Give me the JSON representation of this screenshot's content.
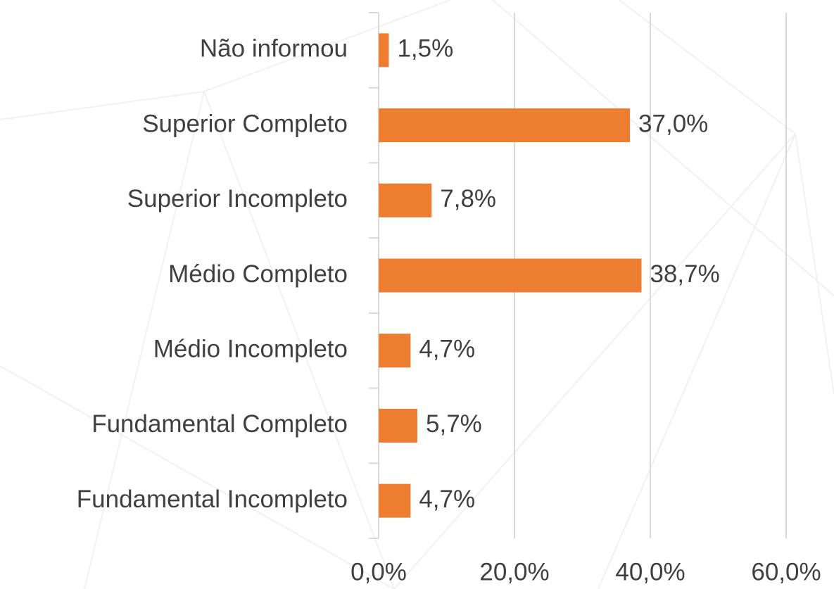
{
  "chart_data": {
    "type": "bar",
    "orientation": "horizontal",
    "categories": [
      "Não informou",
      "Superior Completo",
      "Superior Incompleto",
      "Médio Completo",
      "Médio Incompleto",
      "Fundamental Completo",
      "Fundamental Incompleto"
    ],
    "values": [
      1.5,
      37.0,
      7.8,
      38.7,
      4.7,
      5.7,
      4.7
    ],
    "value_labels": [
      "1,5%",
      "37,0%",
      "7,8%",
      "38,7%",
      "4,7%",
      "5,7%",
      "4,7%"
    ],
    "color": "#ed7d31",
    "xlim": [
      0,
      60
    ],
    "xticks": [
      {
        "value": 0,
        "label": "0,0%"
      },
      {
        "value": 20,
        "label": "20,0%"
      },
      {
        "value": 40,
        "label": "40,0%"
      },
      {
        "value": 60,
        "label": "60,0%"
      }
    ],
    "grid": true
  }
}
